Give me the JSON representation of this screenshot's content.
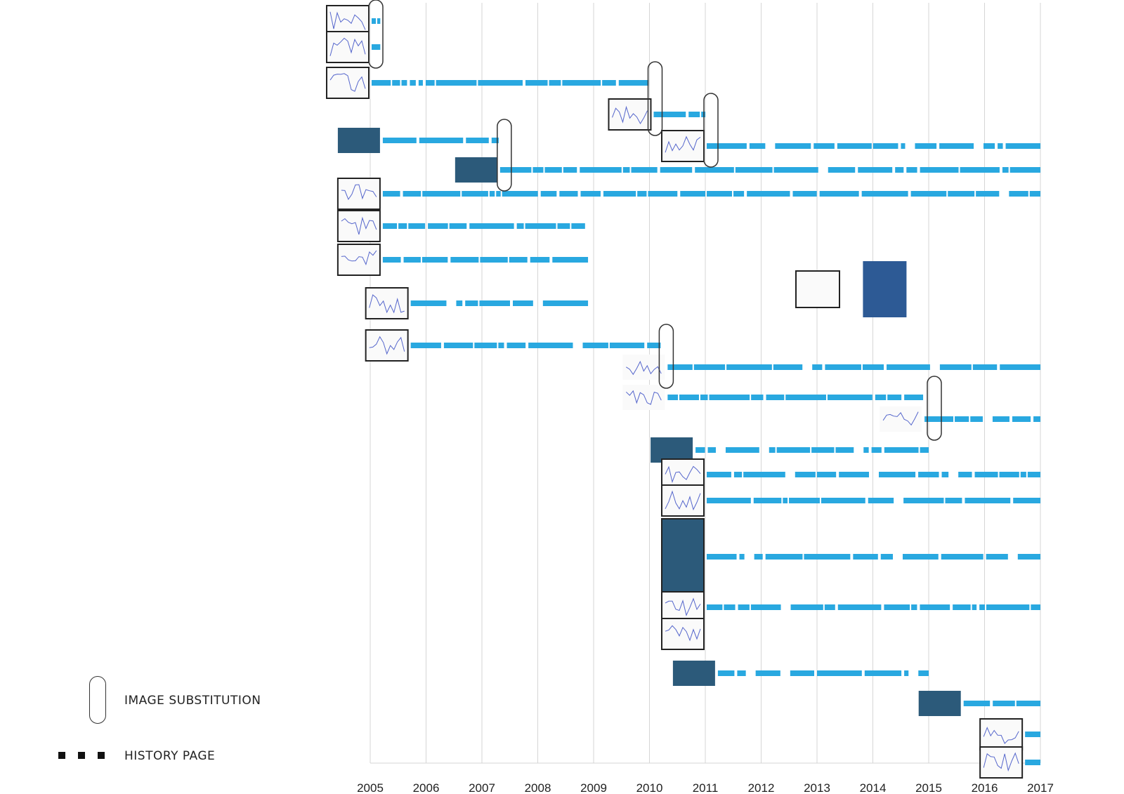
{
  "chart_data": {
    "type": "timeline",
    "title": "",
    "xlabel": "",
    "ylabel": "",
    "xlim": [
      2005,
      2017
    ],
    "x_ticks": [
      "2005",
      "2006",
      "2007",
      "2008",
      "2009",
      "2010",
      "2011",
      "2012",
      "2013",
      "2014",
      "2015",
      "2016",
      "2017"
    ],
    "colors": {
      "history": "#29a8e0",
      "grid": "#d6d6d6",
      "frame": "#222222"
    },
    "rows": [
      {
        "thumb": "plot-a",
        "start": 2005.0,
        "end": 2005.18,
        "frame": true
      },
      {
        "thumb": "plot-b",
        "start": 2005.0,
        "end": 2005.18,
        "frame": true
      },
      {
        "thumb": "plot-c",
        "start": 2005.0,
        "end": 2010.0,
        "frame": true
      },
      {
        "thumb": "plot-d",
        "start": 2010.05,
        "end": 2011.0,
        "frame": true
      },
      {
        "thumb": "map-e",
        "start": 2005.2,
        "end": 2007.3,
        "frame": false
      },
      {
        "thumb": "plot-f",
        "start": 2011.0,
        "end": 2017.0,
        "frame": true
      },
      {
        "thumb": "map-g",
        "start": 2007.3,
        "end": 2017.0,
        "frame": false
      },
      {
        "thumb": "plot-h",
        "start": 2005.2,
        "end": 2017.0,
        "frame": true
      },
      {
        "thumb": "plot-i",
        "start": 2005.2,
        "end": 2008.9,
        "frame": true
      },
      {
        "thumb": "plot-j",
        "start": 2005.2,
        "end": 2008.9,
        "frame": true
      },
      {
        "thumb": "plot-k",
        "start": 2005.7,
        "end": 2008.9,
        "frame": true
      },
      {
        "thumb": "plot-l",
        "start": 2005.7,
        "end": 2010.2,
        "frame": true
      },
      {
        "thumb": "plot-m",
        "start": 2010.3,
        "end": 2017.0,
        "frame": false
      },
      {
        "thumb": "plot-n",
        "start": 2010.3,
        "end": 2014.9,
        "frame": false
      },
      {
        "thumb": "plot-o",
        "start": 2014.9,
        "end": 2017.0,
        "frame": false
      },
      {
        "thumb": "photo-p",
        "start": 2010.8,
        "end": 2015.0,
        "frame": false
      },
      {
        "thumb": "plot-q",
        "start": 2011.0,
        "end": 2017.0,
        "frame": true
      },
      {
        "thumb": "plot-r",
        "start": 2011.0,
        "end": 2017.0,
        "frame": true
      },
      {
        "thumb": "maps-s",
        "start": 2011.0,
        "end": 2017.0,
        "frame": true
      },
      {
        "thumb": "plot-t",
        "start": 2011.0,
        "end": 2017.0,
        "frame": true
      },
      {
        "thumb": "plot-u",
        "start": 2011.0,
        "end": 2011.0,
        "frame": true
      },
      {
        "thumb": "photo-v",
        "start": 2011.2,
        "end": 2015.0,
        "frame": false
      },
      {
        "thumb": "map-w",
        "start": 2015.6,
        "end": 2017.0,
        "frame": false
      },
      {
        "thumb": "plot-x",
        "start": 2016.7,
        "end": 2017.0,
        "frame": true
      },
      {
        "thumb": "plot-y",
        "start": 2016.7,
        "end": 2017.0,
        "frame": true
      }
    ],
    "standalone_images": [
      {
        "thumb": "plot-z",
        "year": 2013.0,
        "frame": true
      },
      {
        "thumb": "photo-statue",
        "year": 2014.2,
        "frame": false
      }
    ],
    "substitutions": [
      {
        "year": 2005.0,
        "rows": [
          0,
          1
        ]
      },
      {
        "year": 2010.0,
        "rows": [
          2,
          3
        ]
      },
      {
        "year": 2011.0,
        "rows": [
          3,
          5
        ]
      },
      {
        "year": 2007.3,
        "rows": [
          4,
          6
        ]
      },
      {
        "year": 2010.2,
        "rows": [
          11,
          12
        ]
      },
      {
        "year": 2015.0,
        "rows": [
          13,
          14
        ]
      }
    ],
    "legend": [
      {
        "kind": "image-substitution",
        "label": "IMAGE SUBSTITUTION"
      },
      {
        "kind": "history-page",
        "label": "HISTORY PAGE"
      }
    ]
  }
}
